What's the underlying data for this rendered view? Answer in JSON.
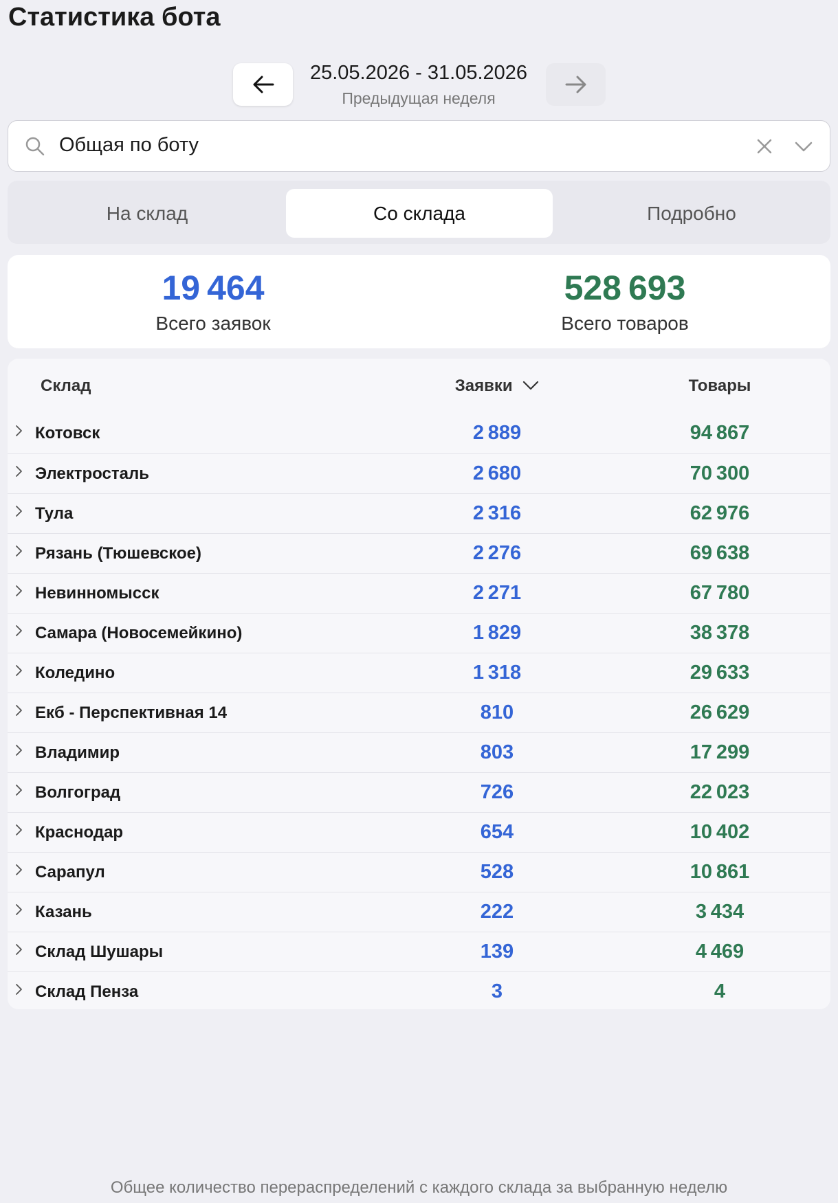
{
  "header": {
    "title": "Статистика бота"
  },
  "period": {
    "dates": "25.05.2026 - 31.05.2026",
    "label": "Предыдущая неделя"
  },
  "filter": {
    "value": "Общая по боту"
  },
  "tabs": {
    "items": [
      "На склад",
      "Со склада",
      "Подробно"
    ],
    "active": 1
  },
  "summary": {
    "orders": {
      "value": "19 464",
      "label": "Всего заявок"
    },
    "items": {
      "value": "528 693",
      "label": "Всего товаров"
    }
  },
  "table": {
    "columns": [
      "Склад",
      "Заявки",
      "Товары"
    ],
    "rows": [
      [
        "Котовск",
        "2 889",
        "94 867"
      ],
      [
        "Электросталь",
        "2 680",
        "70 300"
      ],
      [
        "Тула",
        "2 316",
        "62 976"
      ],
      [
        "Рязань (Тюшевское)",
        "2 276",
        "69 638"
      ],
      [
        "Невинномысск",
        "2 271",
        "67 780"
      ],
      [
        "Самара (Новосемейкино)",
        "1 829",
        "38 378"
      ],
      [
        "Коледино",
        "1 318",
        "29 633"
      ],
      [
        "Екб - Перспективная 14",
        "810",
        "26 629"
      ],
      [
        "Владимир",
        "803",
        "17 299"
      ],
      [
        "Волгоград",
        "726",
        "22 023"
      ],
      [
        "Краснодар",
        "654",
        "10 402"
      ],
      [
        "Сарапул",
        "528",
        "10 861"
      ],
      [
        "Казань",
        "222",
        "3 434"
      ],
      [
        "Склад Шушары",
        "139",
        "4 469"
      ],
      [
        "Склад Пенза",
        "3",
        "4"
      ]
    ]
  },
  "footer": {
    "note": "Общее количество перераспределений с каждого склада за выбранную неделю"
  }
}
